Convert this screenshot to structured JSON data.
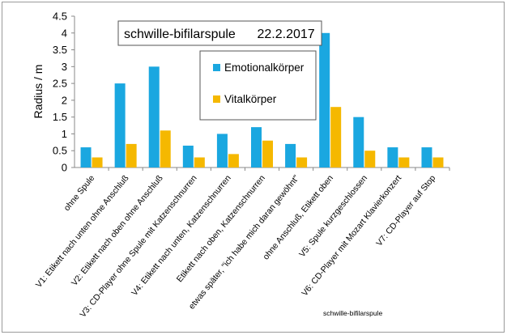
{
  "chart_data": {
    "type": "bar",
    "title": "schwille-bifilarspule      22.2.2017",
    "footer": "schwille-bifilarspule",
    "xlabel": "",
    "ylabel": "Radius / m",
    "ylim": [
      0,
      4.5
    ],
    "yticks": [
      "0",
      "0.5",
      "1",
      "1.5",
      "2",
      "2.5",
      "3",
      "3.5",
      "4",
      "4.5"
    ],
    "grid": false,
    "legend_position": "top-center",
    "categories": [
      "ohne Spule",
      "V1: Etikett nach unten ohne Anschluß",
      "V2: Etikett nach oben ohne Anschluß",
      "V3: CD-Player ohne Spule mit Katzenschnurren",
      "V4: Etikett nach unten, Katzenschnurren",
      "Etikett nach oben, Katzenschnurren",
      "etwas später, \"ich habe mich daran gewöhnt\"",
      "ohne Anschluß, Etikett oben",
      "V5: Spule kurzgeschlossen",
      "V6: CD-Player mit Mozart Klavierkonzert",
      "V7: CD-Player auf Stop"
    ],
    "series": [
      {
        "name": "Emotionalkörper",
        "color": "#1aa7e0",
        "values": [
          0.6,
          2.5,
          3.0,
          0.65,
          1.0,
          1.2,
          0.7,
          4.0,
          1.5,
          0.6,
          0.6
        ]
      },
      {
        "name": "Vitalkörper",
        "color": "#f5b800",
        "values": [
          0.3,
          0.7,
          1.1,
          0.3,
          0.4,
          0.8,
          0.3,
          1.8,
          0.5,
          0.3,
          0.3
        ]
      }
    ]
  }
}
